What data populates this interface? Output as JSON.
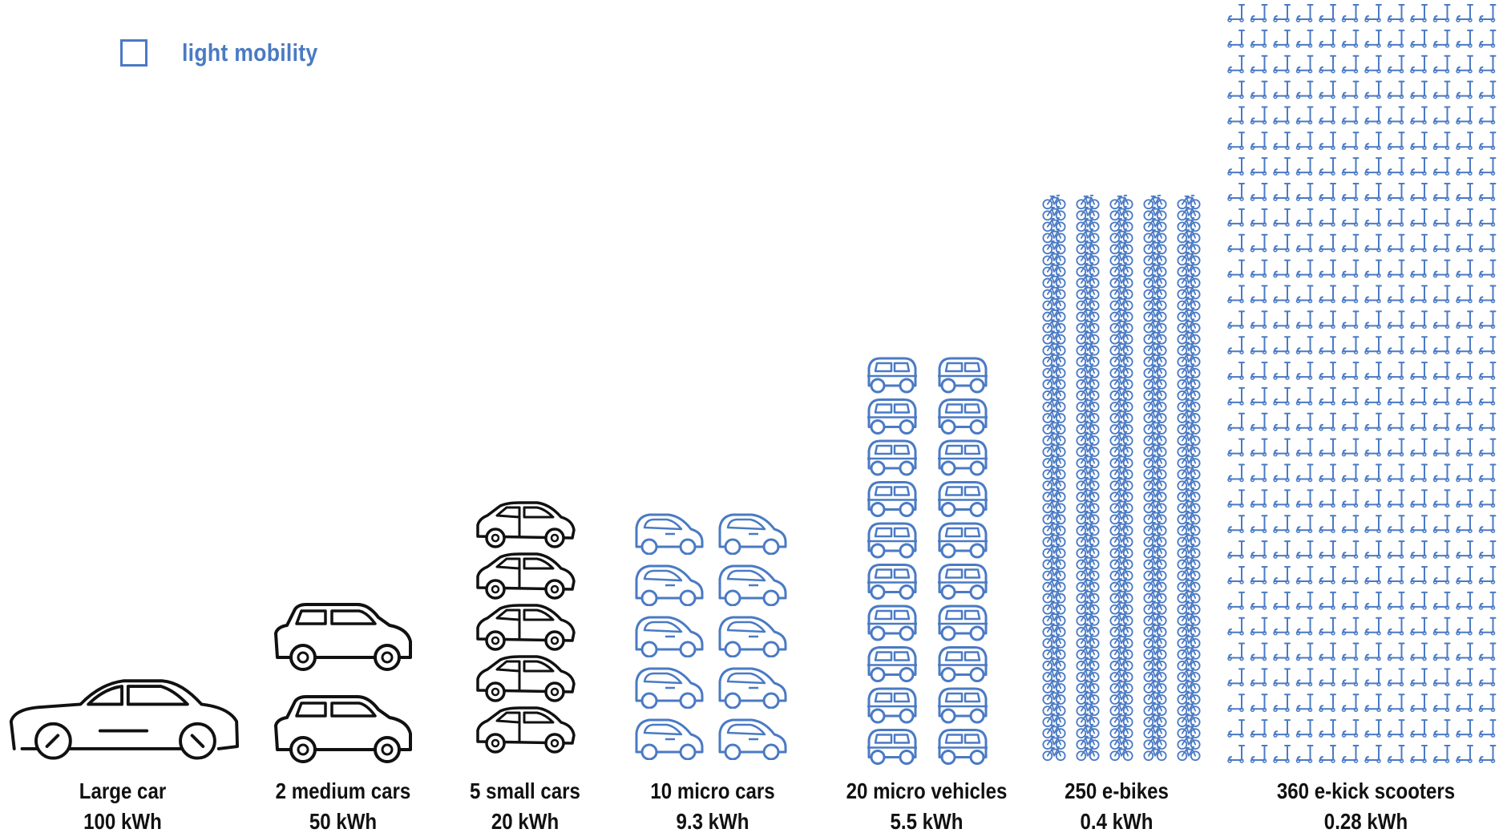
{
  "legend": {
    "label": "light mobility",
    "color": "#4a7ac4"
  },
  "colors": {
    "conventional": "#111111",
    "light": "#4a7ac4"
  },
  "groups": [
    {
      "name": "Large car",
      "energy": "100 kWh",
      "count": 1,
      "icon": "sedan-icon",
      "light_mobility": false
    },
    {
      "name": "2 medium cars",
      "energy": "50 kWh",
      "count": 2,
      "icon": "suv-icon",
      "light_mobility": false
    },
    {
      "name": "5 small cars",
      "energy": "20 kWh",
      "count": 5,
      "icon": "hatchback-icon",
      "light_mobility": false
    },
    {
      "name": "10 micro cars",
      "energy": "9.3 kWh",
      "count": 10,
      "icon": "micro-car-icon",
      "light_mobility": true
    },
    {
      "name": "20 micro vehicles",
      "energy": "5.5 kWh",
      "count": 20,
      "icon": "micro-vehicle-icon",
      "light_mobility": true
    },
    {
      "name": "250 e-bikes",
      "energy": "0.4 kWh",
      "count": 250,
      "icon": "bicycle-icon",
      "light_mobility": true
    },
    {
      "name": "360 e-kick scooters",
      "energy": "0.28 kWh",
      "count": 360,
      "icon": "kick-scooter-icon",
      "light_mobility": true
    }
  ]
}
